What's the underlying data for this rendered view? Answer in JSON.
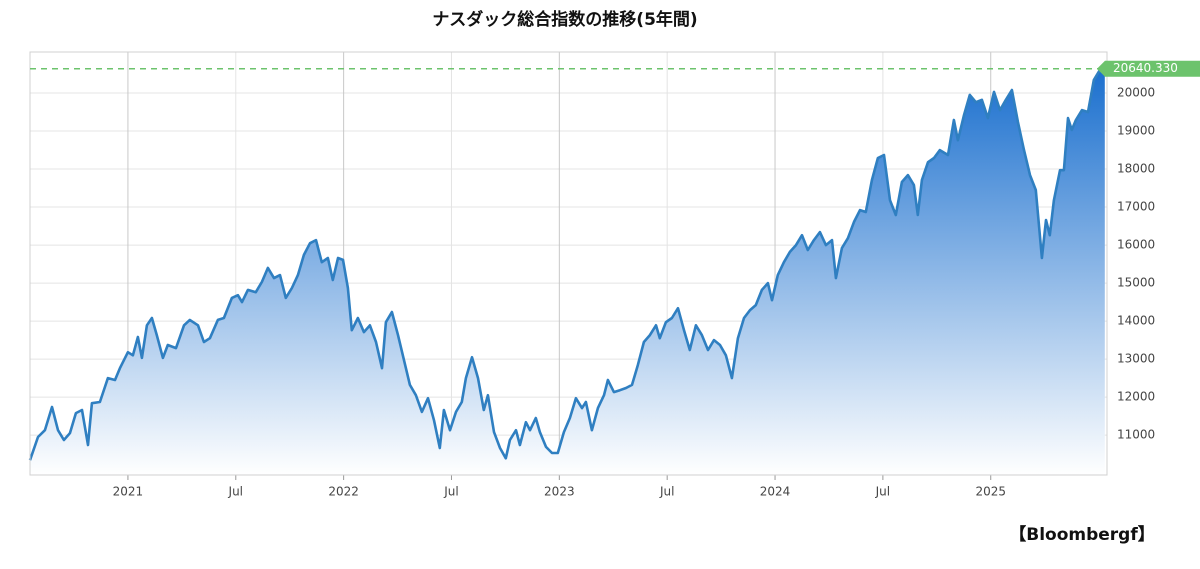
{
  "chart_data": {
    "type": "area",
    "title": "ナスダック総合指数の推移(5年間)",
    "source": "【Bloombergf】",
    "color": "#2f7fc1",
    "fill_top": "#1a6fce",
    "grid": true,
    "xlim": [
      2020.546,
      2025.539
    ],
    "xticks": [
      {
        "value": 2021,
        "label": "2021"
      },
      {
        "value": 2021.5,
        "label": "Jul"
      },
      {
        "value": 2022,
        "label": "2022"
      },
      {
        "value": 2022.5,
        "label": "Jul"
      },
      {
        "value": 2023,
        "label": "2023"
      },
      {
        "value": 2023.5,
        "label": "Jul"
      },
      {
        "value": 2024,
        "label": "2024"
      },
      {
        "value": 2024.5,
        "label": "Jul"
      },
      {
        "value": 2025,
        "label": "2025"
      }
    ],
    "ylim": [
      9950,
      21080
    ],
    "yticks": [
      11000,
      12000,
      13000,
      14000,
      15000,
      16000,
      17000,
      18000,
      19000,
      20000
    ],
    "reference_line": {
      "value": 20640.33,
      "label": "20640.330",
      "color": "#6cc36c"
    },
    "x": [
      2020.546,
      2020.583,
      2020.615,
      2020.648,
      2020.676,
      2020.703,
      2020.731,
      2020.759,
      2020.787,
      2020.815,
      2020.833,
      2020.87,
      2020.907,
      2020.94,
      2020.963,
      2021.0,
      2021.023,
      2021.046,
      2021.065,
      2021.088,
      2021.111,
      2021.134,
      2021.162,
      2021.185,
      2021.223,
      2021.26,
      2021.287,
      2021.325,
      2021.352,
      2021.38,
      2021.417,
      2021.445,
      2021.482,
      2021.51,
      2021.529,
      2021.556,
      2021.593,
      2021.621,
      2021.649,
      2021.677,
      2021.705,
      2021.732,
      2021.76,
      2021.788,
      2021.816,
      2021.844,
      2021.872,
      2021.899,
      2021.927,
      2021.95,
      2021.974,
      2021.997,
      2022.02,
      2022.038,
      2022.066,
      2022.094,
      2022.122,
      2022.15,
      2022.178,
      2022.196,
      2022.224,
      2022.252,
      2022.28,
      2022.307,
      2022.335,
      2022.363,
      2022.391,
      2022.419,
      2022.446,
      2022.465,
      2022.493,
      2022.521,
      2022.548,
      2022.567,
      2022.595,
      2022.623,
      2022.65,
      2022.669,
      2022.697,
      2022.725,
      2022.752,
      2022.771,
      2022.799,
      2022.817,
      2022.845,
      2022.864,
      2022.891,
      2022.91,
      2022.938,
      2022.966,
      2022.993,
      2023.021,
      2023.049,
      2023.077,
      2023.105,
      2023.123,
      2023.151,
      2023.179,
      2023.207,
      2023.225,
      2023.253,
      2023.281,
      2023.309,
      2023.337,
      2023.364,
      2023.392,
      2023.42,
      2023.448,
      2023.466,
      2023.494,
      2023.522,
      2023.55,
      2023.578,
      2023.605,
      2023.633,
      2023.661,
      2023.689,
      2023.717,
      2023.745,
      2023.772,
      2023.8,
      2023.828,
      2023.856,
      2023.884,
      2023.911,
      2023.939,
      2023.967,
      2023.986,
      2024.013,
      2024.041,
      2024.069,
      2024.097,
      2024.125,
      2024.152,
      2024.18,
      2024.208,
      2024.236,
      2024.264,
      2024.282,
      2024.31,
      2024.338,
      2024.366,
      2024.394,
      2024.421,
      2024.449,
      2024.477,
      2024.505,
      2024.533,
      2024.56,
      2024.588,
      2024.616,
      2024.644,
      2024.662,
      2024.681,
      2024.709,
      2024.737,
      2024.764,
      2024.802,
      2024.829,
      2024.848,
      2024.876,
      2024.903,
      2024.931,
      2024.959,
      2024.987,
      2025.015,
      2025.043,
      2025.07,
      2025.098,
      2025.126,
      2025.154,
      2025.182,
      2025.209,
      2025.237,
      2025.256,
      2025.274,
      2025.293,
      2025.321,
      2025.339,
      2025.358,
      2025.376,
      2025.395,
      2025.423,
      2025.451,
      2025.478,
      2025.506,
      2025.529
    ],
    "values": [
      10340,
      10950,
      11130,
      11740,
      11130,
      10870,
      11050,
      11580,
      11660,
      10740,
      11840,
      11870,
      12500,
      12450,
      12760,
      13180,
      13100,
      13580,
      13030,
      13890,
      14080,
      13630,
      13030,
      13370,
      13290,
      13890,
      14030,
      13890,
      13450,
      13550,
      14030,
      14080,
      14610,
      14680,
      14500,
      14820,
      14760,
      15030,
      15400,
      15130,
      15210,
      14610,
      14870,
      15210,
      15740,
      16050,
      16130,
      15550,
      15660,
      15080,
      15660,
      15610,
      14870,
      13760,
      14080,
      13710,
      13890,
      13450,
      12760,
      13970,
      14240,
      13630,
      12970,
      12320,
      12050,
      11610,
      11970,
      11390,
      10660,
      11660,
      11130,
      11610,
      11870,
      12500,
      13050,
      12500,
      11660,
      12050,
      11080,
      10660,
      10390,
      10870,
      11130,
      10740,
      11340,
      11130,
      11450,
      11080,
      10690,
      10530,
      10530,
      11080,
      11450,
      11970,
      11710,
      11870,
      11130,
      11710,
      12050,
      12450,
      12130,
      12180,
      12240,
      12320,
      12840,
      13450,
      13630,
      13890,
      13550,
      13970,
      14080,
      14340,
      13760,
      13240,
      13890,
      13630,
      13240,
      13500,
      13370,
      13100,
      12500,
      13550,
      14080,
      14290,
      14420,
      14820,
      15000,
      14550,
      15210,
      15550,
      15820,
      16000,
      16260,
      15870,
      16130,
      16340,
      16000,
      16130,
      15130,
      15920,
      16180,
      16610,
      16920,
      16870,
      17710,
      18290,
      18370,
      17180,
      16790,
      17660,
      17840,
      17580,
      16790,
      17710,
      18180,
      18290,
      18500,
      18370,
      19290,
      18760,
      19420,
      19950,
      19760,
      19820,
      19340,
      20030,
      19550,
      19820,
      20080,
      19240,
      18500,
      17840,
      17450,
      15660,
      16660,
      16260,
      17180,
      17970,
      17970,
      19340,
      19030,
      19290,
      19550,
      19500,
      20340,
      20610,
      20640
    ]
  }
}
